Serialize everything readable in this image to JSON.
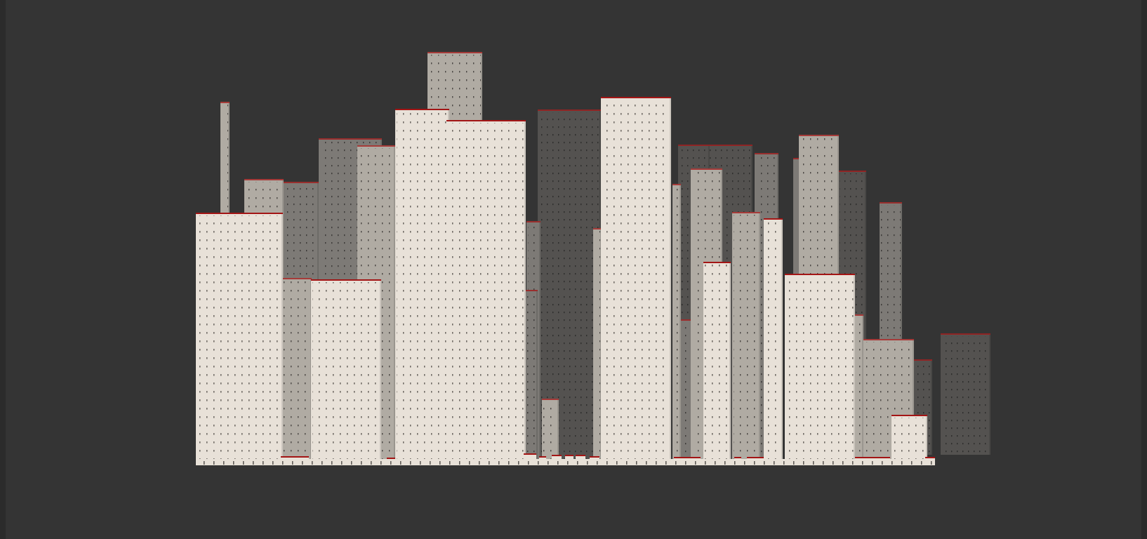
{
  "scene": {
    "background_color": "#343434",
    "roof_trim_color": "#a31515",
    "tone_colors": {
      "far": "#545250",
      "mid": "#7d7a76",
      "near": "#b0aba3",
      "front": "#e8e1d8"
    },
    "window_pattern": "dotted-grid"
  }
}
